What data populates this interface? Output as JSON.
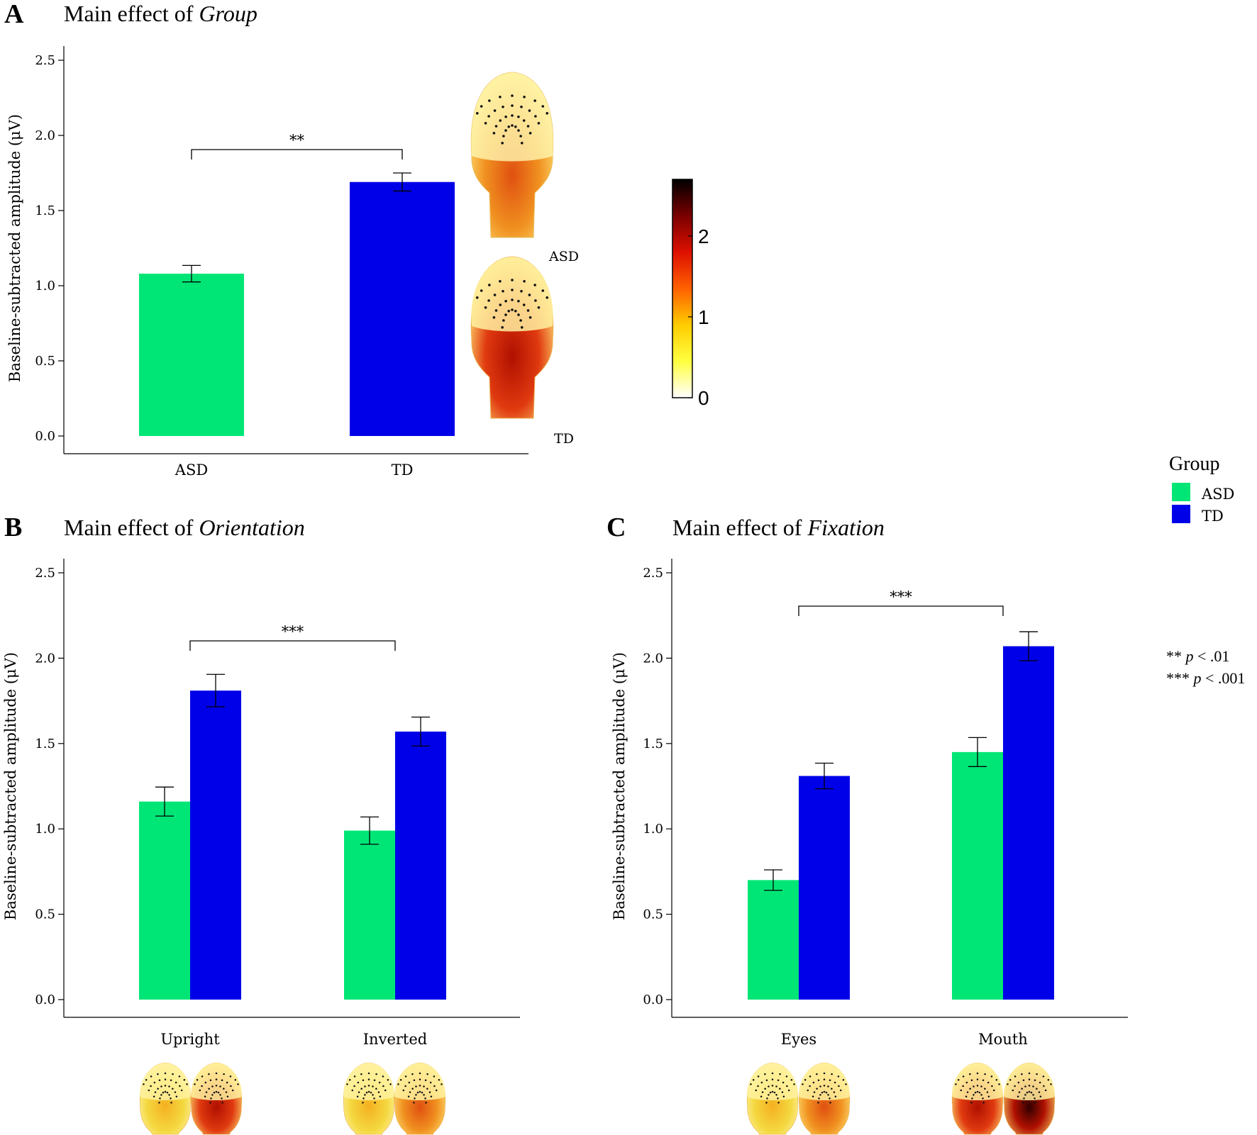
{
  "colors": {
    "asd": "#00e676",
    "td": "#0000e8",
    "axis": "#000000",
    "cb_stops": [
      "#ffffff",
      "#ffff40",
      "#ffcc00",
      "#ff6000",
      "#dd1000",
      "#7a0000",
      "#000000"
    ]
  },
  "panels": {
    "A": {
      "letter": "A",
      "title_prefix": "Main effect of ",
      "title_factor": "Group"
    },
    "B": {
      "letter": "B",
      "title_prefix": "Main effect of ",
      "title_factor": "Orientation"
    },
    "C": {
      "letter": "C",
      "title_prefix": "Main effect of ",
      "title_factor": "Fixation"
    }
  },
  "legend": {
    "title": "Group",
    "items": [
      {
        "label": "ASD",
        "color": "#00e676"
      },
      {
        "label": "TD",
        "color": "#0000e8"
      }
    ]
  },
  "significance_note": {
    "line1_stars": "** ",
    "line1_p": "p",
    "line1_rest": " < .01",
    "line2_stars": "*** ",
    "line2_p": "p",
    "line2_rest": " < .001"
  },
  "colorbar": {
    "ticks": [
      {
        "value": 0,
        "label": "0"
      },
      {
        "value": 1,
        "label": "1"
      },
      {
        "value": 2,
        "label": "2"
      }
    ],
    "range": [
      0,
      2.7
    ]
  },
  "head_labels": {
    "asd": "ASD",
    "td": "TD"
  },
  "chart_data": [
    {
      "type": "bar",
      "panel": "A",
      "title": "Main effect of Group",
      "categories": [
        "ASD",
        "TD"
      ],
      "series": [
        {
          "name": "Group",
          "values": [
            1.08,
            1.69
          ],
          "errors": [
            0.055,
            0.06
          ],
          "colors": [
            "#00e676",
            "#0000e8"
          ]
        }
      ],
      "xlabel": "",
      "ylabel": "Baseline-subtracted amplitude (μV)",
      "ylim": [
        0,
        2.5
      ],
      "yticks": [
        "0.0",
        "0.5",
        "1.0",
        "1.5",
        "2.0",
        "2.5"
      ],
      "significance": [
        {
          "from": "ASD",
          "to": "TD",
          "label": "**"
        }
      ]
    },
    {
      "type": "bar",
      "panel": "B",
      "title": "Main effect of Orientation",
      "categories": [
        "Upright",
        "Inverted"
      ],
      "series": [
        {
          "name": "ASD",
          "values": [
            1.16,
            0.99
          ],
          "errors": [
            0.085,
            0.08
          ]
        },
        {
          "name": "TD",
          "values": [
            1.81,
            1.57
          ],
          "errors": [
            0.095,
            0.085
          ]
        }
      ],
      "xlabel": "",
      "ylabel": "Baseline-subtracted amplitude (μV)",
      "ylim": [
        0,
        2.5
      ],
      "yticks": [
        "0.0",
        "0.5",
        "1.0",
        "1.5",
        "2.0",
        "2.5"
      ],
      "significance": [
        {
          "from": "Upright",
          "to": "Inverted",
          "label": "***"
        }
      ]
    },
    {
      "type": "bar",
      "panel": "C",
      "title": "Main effect of Fixation",
      "categories": [
        "Eyes",
        "Mouth"
      ],
      "series": [
        {
          "name": "ASD",
          "values": [
            0.7,
            1.45
          ],
          "errors": [
            0.06,
            0.085
          ]
        },
        {
          "name": "TD",
          "values": [
            1.31,
            2.07
          ],
          "errors": [
            0.075,
            0.085
          ]
        }
      ],
      "xlabel": "",
      "ylabel": "Baseline-subtracted amplitude (μV)",
      "ylim": [
        0,
        2.5
      ],
      "yticks": [
        "0.0",
        "0.5",
        "1.0",
        "1.5",
        "2.0",
        "2.5"
      ],
      "significance": [
        {
          "from": "Eyes",
          "to": "Mouth",
          "label": "***"
        }
      ]
    }
  ]
}
